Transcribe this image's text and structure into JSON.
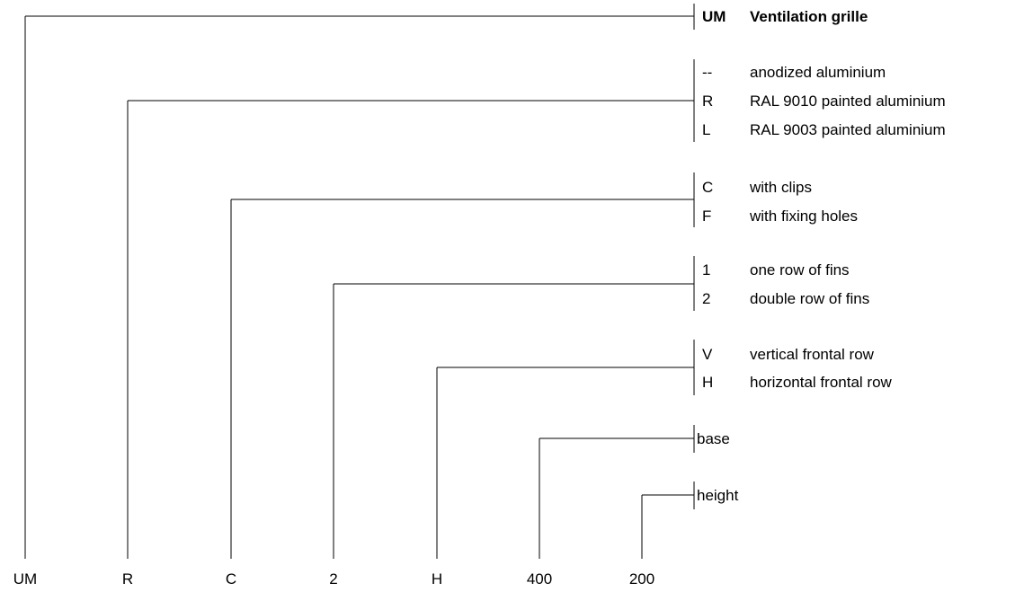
{
  "code_segments": [
    {
      "code": "UM",
      "options": [
        {
          "code": "UM",
          "description": "Ventilation grille",
          "bold": true
        }
      ]
    },
    {
      "code": "R",
      "options": [
        {
          "code": "--",
          "description": "anodized aluminium"
        },
        {
          "code": "R",
          "description": "RAL 9010 painted aluminium"
        },
        {
          "code": "L",
          "description": "RAL 9003 painted aluminium"
        }
      ]
    },
    {
      "code": "C",
      "options": [
        {
          "code": "C",
          "description": "with clips"
        },
        {
          "code": "F",
          "description": "with fixing holes"
        }
      ]
    },
    {
      "code": "2",
      "options": [
        {
          "code": "1",
          "description": "one row of fins"
        },
        {
          "code": "2",
          "description": "double row of fins"
        }
      ]
    },
    {
      "code": "H",
      "options": [
        {
          "code": "V",
          "description": "vertical frontal row"
        },
        {
          "code": "H",
          "description": "horizontal frontal row"
        }
      ]
    },
    {
      "code": "400",
      "options": [
        {
          "code": "",
          "description": "base"
        }
      ]
    },
    {
      "code": "200",
      "options": [
        {
          "code": "",
          "description": "height"
        }
      ]
    }
  ]
}
